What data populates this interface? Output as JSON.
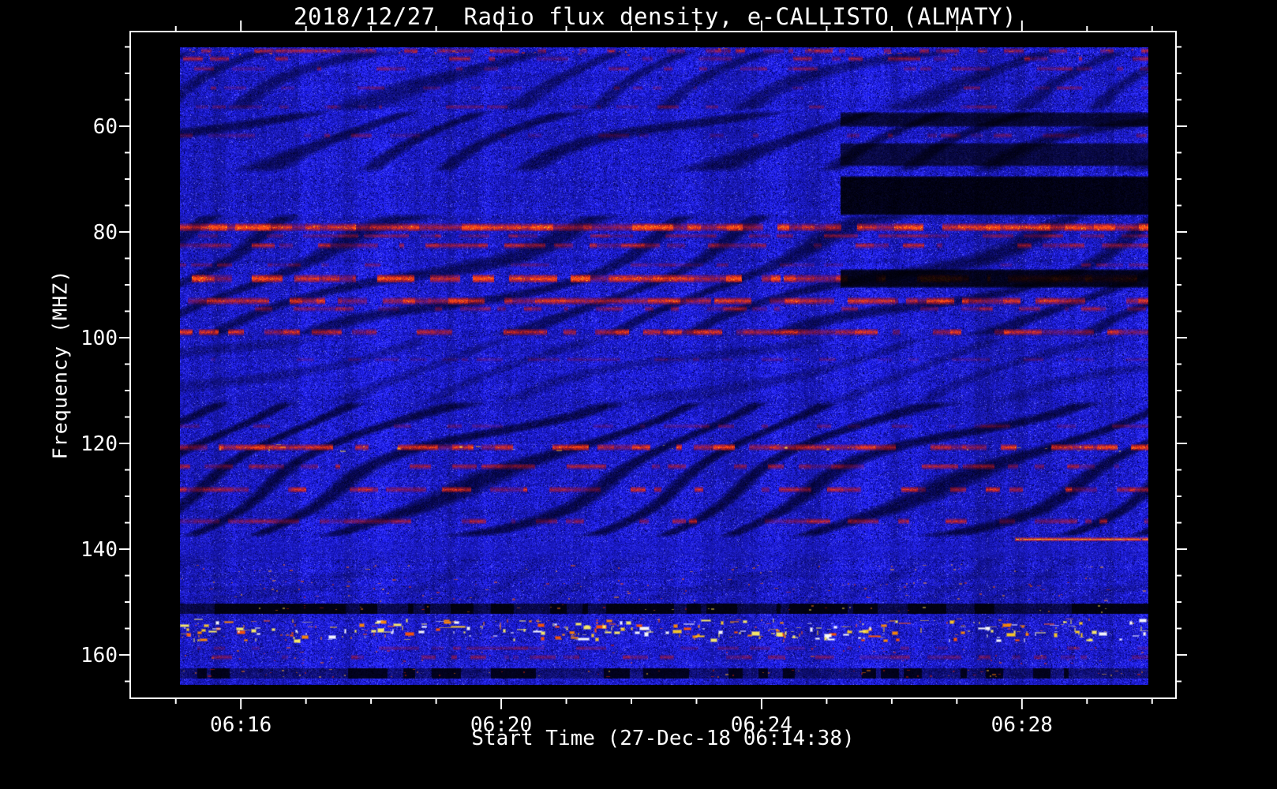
{
  "chart_data": {
    "type": "heatmap",
    "title": "2018/12/27  Radio flux density, e-CALLISTO (ALMATY)",
    "xlabel": "Start Time (27-Dec-18 06:14:38)",
    "ylabel": "Frequency (MHZ)",
    "network": "e-CALLISTO",
    "station": "ALMATY",
    "date": "2018/12/27",
    "start_time": "06:14:38",
    "x_axis": {
      "start": "06:14:18",
      "end": "06:30:22",
      "major_ticks": [
        "06:16",
        "06:20",
        "06:24",
        "06:28"
      ],
      "minor_step_seconds": 60
    },
    "y_axis": {
      "min": 42.1,
      "max": 168.2,
      "major_ticks": [
        60,
        80,
        100,
        120,
        140,
        160
      ],
      "minor_step": 5,
      "unit": "MHz",
      "inverted": true
    },
    "data_extent": {
      "freq_min": 45.0,
      "freq_max": 165.6,
      "x_frac_range": [
        0.0475,
        0.9736
      ]
    },
    "colormap": {
      "base_blue": "#2222cc",
      "dark": "#000060",
      "rfi_red": "#dd2200",
      "hot_orange": "#ff7700",
      "saturated_yellow": "#ffee55",
      "white": "#ffffff",
      "gap_black": "#000000",
      "frame": "#ffffff",
      "background": "#000000"
    },
    "features": [
      {
        "kind": "wavy",
        "f0": 45.5,
        "f1": 57.0,
        "strength": 0.5,
        "period": 130
      },
      {
        "kind": "wavy",
        "f0": 57.0,
        "f1": 68.5,
        "strength": 0.62,
        "period": 145
      },
      {
        "kind": "wavy",
        "f0": 76.5,
        "f1": 99.5,
        "strength": 0.6,
        "period": 150
      },
      {
        "kind": "wavy",
        "f0": 100.0,
        "f1": 112.0,
        "strength": 0.3,
        "period": 160
      },
      {
        "kind": "wavy",
        "f0": 112.0,
        "f1": 137.5,
        "strength": 0.72,
        "period": 120
      },
      {
        "kind": "wavy",
        "f0": 141.0,
        "f1": 149.5,
        "strength": 0.16,
        "period": 140
      },
      {
        "kind": "smooth",
        "f0": 138.6,
        "f1": 141.4,
        "amount": 0.4
      },
      {
        "kind": "red_band",
        "f": 45.6,
        "strength": 0.55,
        "dash": 0.55,
        "h": 0.8
      },
      {
        "kind": "red_band",
        "f": 47.1,
        "strength": 0.5,
        "dash": 0.55,
        "h": 0.8
      },
      {
        "kind": "red_band",
        "f": 49.0,
        "strength": 0.4,
        "dash": 0.65,
        "h": 0.7
      },
      {
        "kind": "red_band",
        "f": 52.6,
        "strength": 0.35,
        "dash": 0.65,
        "h": 0.7
      },
      {
        "kind": "red_band",
        "f": 56.2,
        "strength": 0.3,
        "dash": 0.7,
        "h": 0.7
      },
      {
        "kind": "red_band",
        "f": 61.6,
        "strength": 0.32,
        "dash": 0.62,
        "h": 0.8
      },
      {
        "kind": "red_band",
        "f": 79.0,
        "strength": 0.95,
        "dash": 0.1,
        "h": 1.3
      },
      {
        "kind": "red_band",
        "f": 80.6,
        "strength": 0.45,
        "dash": 0.5,
        "h": 0.7
      },
      {
        "kind": "red_band",
        "f": 82.4,
        "strength": 0.6,
        "dash": 0.4,
        "h": 0.9
      },
      {
        "kind": "red_band",
        "f": 86.1,
        "strength": 0.35,
        "dash": 0.6,
        "h": 0.7
      },
      {
        "kind": "red_band",
        "f": 88.7,
        "strength": 0.9,
        "dash": 0.15,
        "h": 1.4
      },
      {
        "kind": "red_band",
        "f": 92.9,
        "strength": 0.8,
        "dash": 0.2,
        "h": 1.2
      },
      {
        "kind": "red_band",
        "f": 94.4,
        "strength": 0.5,
        "dash": 0.5,
        "h": 0.8
      },
      {
        "kind": "red_band",
        "f": 98.8,
        "strength": 0.7,
        "dash": 0.3,
        "h": 1.1
      },
      {
        "kind": "red_band",
        "f": 104.0,
        "strength": 0.25,
        "dash": 0.7,
        "h": 0.6
      },
      {
        "kind": "red_band",
        "f": 116.6,
        "strength": 0.3,
        "dash": 0.65,
        "h": 0.7
      },
      {
        "kind": "red_band",
        "f": 120.6,
        "strength": 0.8,
        "dash": 0.3,
        "h": 1.1
      },
      {
        "kind": "red_band",
        "f": 124.2,
        "strength": 0.55,
        "dash": 0.45,
        "h": 0.9
      },
      {
        "kind": "red_band",
        "f": 128.6,
        "strength": 0.65,
        "dash": 0.4,
        "h": 1.0
      },
      {
        "kind": "red_band",
        "f": 134.6,
        "strength": 0.55,
        "dash": 0.45,
        "h": 0.9
      },
      {
        "kind": "red_band",
        "f": 158.6,
        "strength": 0.35,
        "dash": 0.6,
        "h": 0.7
      },
      {
        "kind": "red_band",
        "f": 160.3,
        "strength": 0.45,
        "dash": 0.55,
        "h": 0.8
      },
      {
        "kind": "dark_stripe",
        "f0": 150.2,
        "f1": 152.0,
        "darkness": 0.8,
        "black_dash": 0.5
      },
      {
        "kind": "dark_stripe",
        "f0": 162.4,
        "f1": 164.3,
        "darkness": 0.55,
        "black_dash": 0.25
      },
      {
        "kind": "black_region",
        "t0": 0.682,
        "t1": 1.0,
        "f0": 57.2,
        "f1": 60.0,
        "darkness": 0.8
      },
      {
        "kind": "black_region",
        "t0": 0.682,
        "t1": 1.0,
        "f0": 63.0,
        "f1": 67.4,
        "darkness": 0.75
      },
      {
        "kind": "black_region",
        "t0": 0.682,
        "t1": 1.0,
        "f0": 69.3,
        "f1": 76.6,
        "darkness": 1.0
      },
      {
        "kind": "black_region",
        "t0": 0.682,
        "t1": 1.0,
        "f0": 87.0,
        "f1": 90.3,
        "darkness": 0.95
      },
      {
        "kind": "red_line",
        "f": 138.0,
        "h": 0.7,
        "t0": 0.862,
        "t1": 1.0
      },
      {
        "kind": "blobs",
        "f0": 153.0,
        "f1": 157.0,
        "count": 300,
        "wmax": 16,
        "hmax": 5,
        "palette": [
          "#ff8800",
          "#ffcc22",
          "#ffee66",
          "#ffffff",
          "#ff5500"
        ]
      },
      {
        "kind": "blobs",
        "f0": 154.4,
        "f1": 155.8,
        "count": 60,
        "wmax": 20,
        "hmax": 6,
        "palette": [
          "#ffee66",
          "#ffffff",
          "#ffcc22"
        ]
      },
      {
        "kind": "blobs",
        "f0": 120.1,
        "f1": 121.3,
        "count": 28,
        "wmax": 8,
        "hmax": 3,
        "palette": [
          "#ffaa22",
          "#ffdd44"
        ]
      },
      {
        "kind": "blobs",
        "f0": 145.3,
        "f1": 149.6,
        "count": 110,
        "wmax": 5,
        "hmax": 2,
        "palette": [
          "#ff6600",
          "#ff9922",
          "#dd3300"
        ]
      },
      {
        "kind": "blobs",
        "f0": 142.8,
        "f1": 144.2,
        "count": 40,
        "wmax": 5,
        "hmax": 2,
        "palette": [
          "#ff6600",
          "#ffaa33"
        ]
      },
      {
        "kind": "blobs",
        "f0": 150.4,
        "f1": 151.8,
        "count": 40,
        "wmax": 4,
        "hmax": 2,
        "palette": [
          "#dd2200",
          "#ff7711",
          "#ffdd44"
        ]
      },
      {
        "kind": "blobs",
        "f0": 162.6,
        "f1": 164.0,
        "count": 70,
        "wmax": 5,
        "hmax": 2,
        "palette": [
          "#ff7700",
          "#ffbb33",
          "#dd2200"
        ]
      },
      {
        "kind": "blobs",
        "f0": 158.0,
        "f1": 161.5,
        "count": 60,
        "wmax": 4,
        "hmax": 2,
        "palette": [
          "#dd2200",
          "#ff6600"
        ]
      },
      {
        "kind": "blobs",
        "f0": 45.1,
        "f1": 46.4,
        "count": 60,
        "wmax": 6,
        "hmax": 2,
        "palette": [
          "#ee3300",
          "#ff6600"
        ]
      }
    ]
  }
}
